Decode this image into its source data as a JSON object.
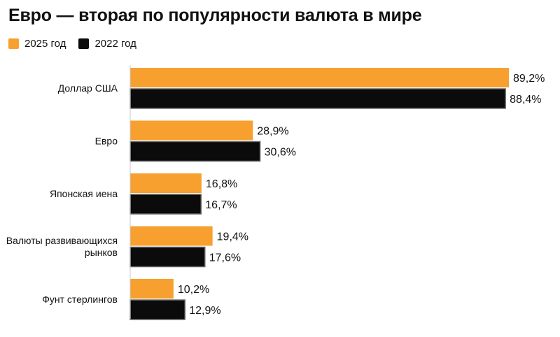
{
  "chart_data": {
    "type": "bar",
    "orientation": "horizontal",
    "title": "Евро — вторая по популярности валюта в мире",
    "categories": [
      "Доллар США",
      "Евро",
      "Японская иена",
      "Валюты развивающихся рынков",
      "Фунт стерлингов"
    ],
    "category_lines": [
      [
        "Доллар США"
      ],
      [
        "Евро"
      ],
      [
        "Японская иена"
      ],
      [
        "Валюты развивающихся",
        "рынков"
      ],
      [
        "Фунт стерлингов"
      ]
    ],
    "series": [
      {
        "name": "2025 год",
        "color": "#f7a030",
        "values": [
          89.2,
          28.9,
          16.8,
          19.4,
          10.2
        ],
        "labels": [
          "89,2%",
          "28,9%",
          "16,8%",
          "19,4%",
          "10,2%"
        ]
      },
      {
        "name": "2022 год",
        "color": "#0b0b0b",
        "values": [
          88.4,
          30.6,
          16.7,
          17.6,
          12.9
        ],
        "labels": [
          "88,4%",
          "30,6%",
          "16,7%",
          "17,6%",
          "12,9%"
        ]
      }
    ],
    "xlim": [
      0,
      100
    ],
    "grid": false,
    "legend_position": "top-left"
  }
}
